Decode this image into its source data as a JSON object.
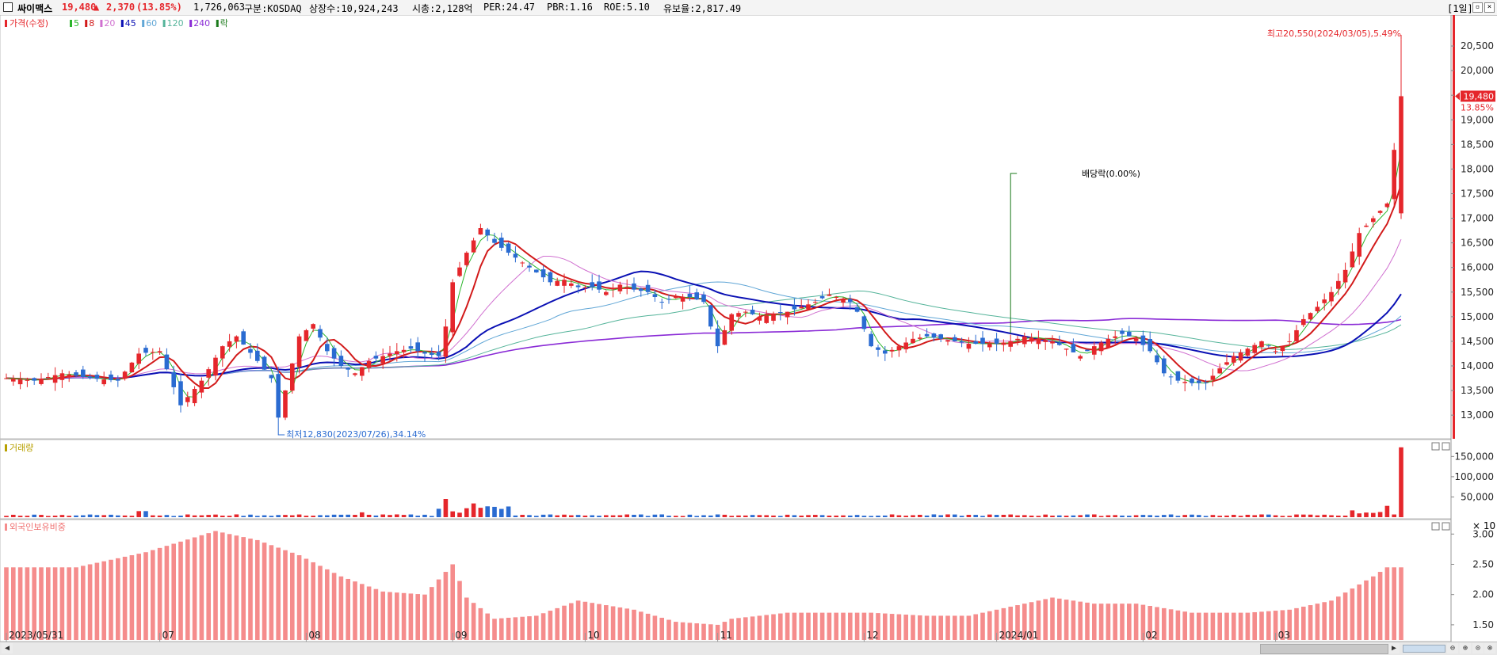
{
  "header": {
    "name": "싸이맥스",
    "price": "19,480",
    "change_symbol": "▲",
    "change": "2,370",
    "change_pct": "(13.85%)",
    "volume": "1,726,063",
    "market": "구분:KOSDAQ",
    "shares": "상장수:10,924,243",
    "mcap": "시총:2,128억",
    "per": "PER:24.47",
    "pbr": "PBR:1.16",
    "roe": "ROE:5.10",
    "float": "유보율:2,817.49",
    "period": "[1일]"
  },
  "legend": {
    "price": "가격(수정)",
    "ma": [
      {
        "label": "5",
        "color": "#2cb52c"
      },
      {
        "label": "8",
        "color": "#d21a1a"
      },
      {
        "label": "20",
        "color": "#d070d0"
      },
      {
        "label": "45",
        "color": "#0a10b4"
      },
      {
        "label": "60",
        "color": "#60a6d6"
      },
      {
        "label": "120",
        "color": "#55b49a"
      },
      {
        "label": "240",
        "color": "#8a2bd6"
      }
    ],
    "ex": "락"
  },
  "annotations": {
    "high": "최고20,550(2024/03/05),5.49%",
    "low": "최저12,830(2023/07/26),34.14%",
    "dividend": "배당락(0.00%)",
    "price_tag": "19,480",
    "pct_tag": "13.85%"
  },
  "panels": {
    "volume_title": "거래량",
    "foreign_title": "외국인보유비중",
    "volume_unit": "× 10"
  },
  "colors": {
    "up": "#e5262b",
    "down": "#2a6bd1",
    "ma5": "#2cb52c",
    "ma8": "#d21a1a",
    "ma20": "#d070d0",
    "ma45": "#0a10b4",
    "ma60": "#60a6d6",
    "ma120": "#55b49a",
    "ma240": "#8a2bd6",
    "foreign_bar": "#f58c8c"
  },
  "chart_data": {
    "type": "candlestick",
    "price_axis": {
      "ticks": [
        "20,500",
        "20,000",
        "19,500",
        "19,000",
        "18,500",
        "18,000",
        "17,500",
        "17,000",
        "16,500",
        "16,000",
        "15,500",
        "15,000",
        "14,500",
        "14,000",
        "13,500",
        "13,000"
      ],
      "range": [
        12600,
        21000
      ]
    },
    "volume_axis": {
      "ticks": [
        "150,000",
        "100,000",
        "50,000"
      ],
      "range": [
        0,
        180000
      ]
    },
    "foreign_axis": {
      "ticks": [
        "3.00",
        "2.50",
        "2.00",
        "1.50"
      ],
      "range": [
        1.25,
        3.2
      ]
    },
    "x_labels": [
      {
        "label": "2023/05/31",
        "index": 0
      },
      {
        "label": "07",
        "index": 22
      },
      {
        "label": "08",
        "index": 43
      },
      {
        "label": "09",
        "index": 64
      },
      {
        "label": "10",
        "index": 83
      },
      {
        "label": "11",
        "index": 102
      },
      {
        "label": "12",
        "index": 123
      },
      {
        "label": "2024/01",
        "index": 142
      },
      {
        "label": "02",
        "index": 163
      },
      {
        "label": "03",
        "index": 182
      }
    ],
    "close_pts": [
      [
        0,
        13750
      ],
      [
        4,
        13700
      ],
      [
        8,
        13850
      ],
      [
        12,
        13750
      ],
      [
        16,
        13700
      ],
      [
        19,
        14250
      ],
      [
        22,
        14300
      ],
      [
        25,
        13200
      ],
      [
        28,
        13700
      ],
      [
        31,
        14400
      ],
      [
        33,
        14600
      ],
      [
        36,
        14100
      ],
      [
        38,
        13750
      ],
      [
        39,
        12950
      ],
      [
        42,
        14600
      ],
      [
        44,
        14850
      ],
      [
        46,
        14300
      ],
      [
        48,
        14000
      ],
      [
        50,
        13850
      ],
      [
        52,
        14100
      ],
      [
        54,
        14200
      ],
      [
        56,
        14300
      ],
      [
        58,
        14350
      ],
      [
        60,
        14250
      ],
      [
        62,
        14200
      ],
      [
        63,
        14800
      ],
      [
        64,
        15700
      ],
      [
        66,
        16300
      ],
      [
        68,
        16800
      ],
      [
        70,
        16500
      ],
      [
        72,
        16300
      ],
      [
        74,
        16100
      ],
      [
        76,
        15900
      ],
      [
        78,
        15700
      ],
      [
        80,
        15750
      ],
      [
        82,
        15600
      ],
      [
        84,
        15600
      ],
      [
        86,
        15500
      ],
      [
        88,
        15650
      ],
      [
        90,
        15550
      ],
      [
        92,
        15500
      ],
      [
        94,
        15300
      ],
      [
        96,
        15400
      ],
      [
        98,
        15400
      ],
      [
        100,
        15300
      ],
      [
        101,
        14800
      ],
      [
        102,
        14400
      ],
      [
        104,
        15050
      ],
      [
        106,
        15100
      ],
      [
        108,
        15000
      ],
      [
        110,
        15050
      ],
      [
        112,
        15100
      ],
      [
        114,
        15200
      ],
      [
        116,
        15300
      ],
      [
        118,
        15450
      ],
      [
        120,
        15350
      ],
      [
        121,
        15300
      ],
      [
        122,
        15100
      ],
      [
        124,
        14400
      ],
      [
        126,
        14250
      ],
      [
        128,
        14400
      ],
      [
        130,
        14550
      ],
      [
        132,
        14600
      ],
      [
        134,
        14550
      ],
      [
        136,
        14500
      ],
      [
        138,
        14450
      ],
      [
        140,
        14450
      ],
      [
        142,
        14450
      ],
      [
        144,
        14500
      ],
      [
        146,
        14600
      ],
      [
        148,
        14550
      ],
      [
        150,
        14500
      ],
      [
        152,
        14350
      ],
      [
        154,
        14200
      ],
      [
        156,
        14400
      ],
      [
        158,
        14550
      ],
      [
        160,
        14650
      ],
      [
        162,
        14550
      ],
      [
        164,
        14300
      ],
      [
        166,
        13850
      ],
      [
        168,
        13700
      ],
      [
        170,
        13650
      ],
      [
        172,
        13650
      ],
      [
        174,
        13950
      ],
      [
        176,
        14200
      ],
      [
        178,
        14350
      ],
      [
        180,
        14500
      ],
      [
        182,
        14300
      ],
      [
        184,
        14500
      ],
      [
        186,
        14950
      ],
      [
        188,
        15200
      ],
      [
        190,
        15500
      ],
      [
        192,
        15950
      ],
      [
        194,
        16700
      ],
      [
        196,
        17000
      ],
      [
        198,
        17300
      ],
      [
        200,
        19480
      ]
    ],
    "count": 201,
    "volume_values": "small bars except spikes near 09 and 2024/03/05",
    "foreign_shape": "foreign ownership ratio 1.5%–3.0%"
  }
}
